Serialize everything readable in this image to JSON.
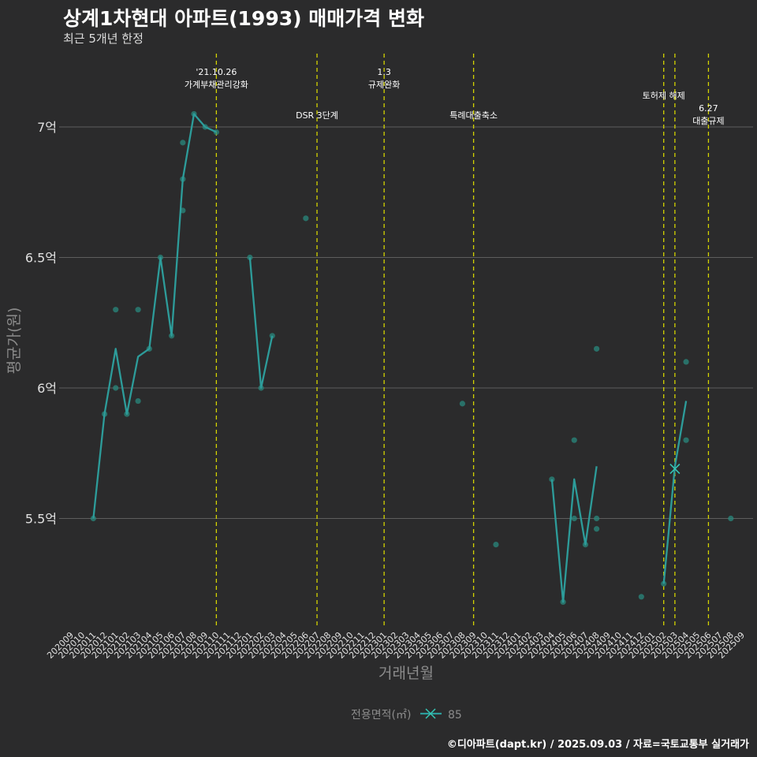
{
  "title": "상계1차현대 아파트(1993) 매매가격 변화",
  "subtitle": "최근 5개년 한정",
  "caption": "©디아파트(dapt.kr) / 2025.09.03 / 자료=국토교통부 실거래가",
  "colors": {
    "background": "#2b2b2c",
    "line": "#2d9c9a",
    "point": "#2a8a7e",
    "event": "#d4d400",
    "marker": "#35c6b4"
  },
  "chart_data": {
    "type": "line",
    "title": "상계1차현대 아파트(1993) 매매가격 변화",
    "xlabel": "거래년월",
    "ylabel": "평균가(원)",
    "ylim": [
      5.1,
      7.4
    ],
    "yticks": [
      5.5,
      6,
      6.5,
      7
    ],
    "ytick_labels": [
      "5.5억",
      "6억",
      "6.5억",
      "7억"
    ],
    "months": [
      "202009",
      "202010",
      "202011",
      "202012",
      "202101",
      "202102",
      "202103",
      "202104",
      "202105",
      "202106",
      "202107",
      "202108",
      "202109",
      "202110",
      "202111",
      "202112",
      "202201",
      "202202",
      "202203",
      "202204",
      "202205",
      "202206",
      "202207",
      "202208",
      "202209",
      "202210",
      "202211",
      "202212",
      "202301",
      "202302",
      "202303",
      "202304",
      "202305",
      "202306",
      "202307",
      "202308",
      "202309",
      "202310",
      "202311",
      "202312",
      "202401",
      "202402",
      "202403",
      "202404",
      "202405",
      "202406",
      "202407",
      "202408",
      "202409",
      "202410",
      "202411",
      "202412",
      "202501",
      "202502",
      "202503",
      "202504",
      "202505",
      "202506",
      "202507",
      "202508",
      "202509"
    ],
    "legend": {
      "title": "전용면적(㎡)",
      "entries": [
        "85"
      ]
    },
    "series": [
      {
        "name": "85",
        "segments": [
          [
            [
              "202011",
              5.5
            ],
            [
              "202012",
              5.9
            ],
            [
              "202101",
              6.15
            ],
            [
              "202102",
              5.9
            ],
            [
              "202103",
              6.12
            ],
            [
              "202104",
              6.15
            ],
            [
              "202105",
              6.5
            ],
            [
              "202106",
              6.2
            ],
            [
              "202107",
              6.8
            ],
            [
              "202108",
              7.05
            ],
            [
              "202109",
              7.0
            ],
            [
              "202110",
              6.98
            ]
          ],
          [
            [
              "202201",
              6.5
            ],
            [
              "202202",
              6.0
            ],
            [
              "202203",
              6.2
            ]
          ],
          [
            [
              "202404",
              5.65
            ],
            [
              "202405",
              5.18
            ],
            [
              "202406",
              5.65
            ],
            [
              "202407",
              5.4
            ],
            [
              "202408",
              5.7
            ]
          ],
          [
            [
              "202502",
              5.25
            ],
            [
              "202503",
              5.7
            ],
            [
              "202504",
              5.95
            ]
          ]
        ],
        "points": [
          [
            "202011",
            5.5
          ],
          [
            "202012",
            5.9
          ],
          [
            "202101",
            6.3
          ],
          [
            "202101",
            6.0
          ],
          [
            "202102",
            5.9
          ],
          [
            "202103",
            6.3
          ],
          [
            "202103",
            5.95
          ],
          [
            "202104",
            6.15
          ],
          [
            "202105",
            6.5
          ],
          [
            "202106",
            6.2
          ],
          [
            "202107",
            6.94
          ],
          [
            "202107",
            6.8
          ],
          [
            "202107",
            6.68
          ],
          [
            "202108",
            7.05
          ],
          [
            "202109",
            7.0
          ],
          [
            "202110",
            6.98
          ],
          [
            "202201",
            6.5
          ],
          [
            "202202",
            6.0
          ],
          [
            "202203",
            6.2
          ],
          [
            "202206",
            6.65
          ],
          [
            "202308",
            5.94
          ],
          [
            "202311",
            5.4
          ],
          [
            "202404",
            5.65
          ],
          [
            "202405",
            5.18
          ],
          [
            "202406",
            5.8
          ],
          [
            "202406",
            5.5
          ],
          [
            "202407",
            5.4
          ],
          [
            "202408",
            6.15
          ],
          [
            "202408",
            5.5
          ],
          [
            "202408",
            5.46
          ],
          [
            "202412",
            5.2
          ],
          [
            "202502",
            5.25
          ],
          [
            "202504",
            6.1
          ],
          [
            "202504",
            5.8
          ],
          [
            "202508",
            5.5
          ]
        ],
        "marker": [
          "202503",
          5.69
        ]
      }
    ],
    "events": [
      {
        "month": "202110",
        "label_lines": [
          "'21.10.26",
          "가계부채관리강화"
        ],
        "level": 0
      },
      {
        "month": "202207",
        "label_lines": [
          "DSR 3단계"
        ],
        "level": 2
      },
      {
        "month": "202301",
        "label_lines": [
          "1.3",
          "규제완화"
        ],
        "level": 0
      },
      {
        "month": "202309",
        "label_lines": [
          "특례대출축소"
        ],
        "level": 2
      },
      {
        "month": "202502",
        "label_lines": [
          "토허제 해제"
        ],
        "level": 1
      },
      {
        "month": "202503",
        "label_lines": [],
        "level": 1
      },
      {
        "month": "202506",
        "label_lines": [
          "6.27",
          "대출규제"
        ],
        "level": 3
      }
    ]
  }
}
